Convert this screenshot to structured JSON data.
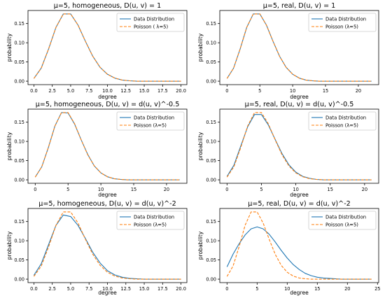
{
  "colors": {
    "data_distribution": "#1f77b4",
    "poisson": "#ff7f0e"
  },
  "chart_data": [
    {
      "type": "line",
      "title": "μ=5, homogeneous, D(u, v) = 1",
      "xlabel": "degree",
      "ylabel": "probability",
      "xlim": [
        -0.8,
        20.8
      ],
      "ylim": [
        -0.009,
        0.184
      ],
      "xticks": [
        0,
        2.5,
        5,
        7.5,
        10,
        12.5,
        15,
        17.5,
        20
      ],
      "xtick_labels": [
        "0.0",
        "2.5",
        "5.0",
        "7.5",
        "10.0",
        "12.5",
        "15.0",
        "17.5",
        "20.0"
      ],
      "yticks": [
        0,
        0.05,
        0.1,
        0.15
      ],
      "ytick_labels": [
        "0.00",
        "0.05",
        "0.10",
        "0.15"
      ],
      "grid": false,
      "legend_position": "top-right",
      "series": [
        {
          "name": "Data Distribution",
          "style": "solid",
          "x": [
            0,
            1,
            2,
            3,
            4,
            5,
            6,
            7,
            8,
            9,
            10,
            11,
            12,
            13,
            14,
            15,
            16,
            17,
            18,
            19,
            20
          ],
          "y": [
            0.007,
            0.034,
            0.084,
            0.14,
            0.175,
            0.175,
            0.146,
            0.104,
            0.065,
            0.036,
            0.018,
            0.008,
            0.003,
            0.001,
            0.0,
            0.0,
            0.0,
            0.0,
            0.0,
            0.0,
            0.0
          ]
        },
        {
          "name": "Poisson ( λ=5)",
          "style": "dashed",
          "x": [
            0,
            1,
            2,
            3,
            4,
            5,
            6,
            7,
            8,
            9,
            10,
            11,
            12,
            13,
            14,
            15,
            16,
            17,
            18,
            19,
            20
          ],
          "y": [
            0.007,
            0.034,
            0.084,
            0.14,
            0.175,
            0.175,
            0.146,
            0.104,
            0.065,
            0.036,
            0.018,
            0.008,
            0.003,
            0.001,
            0.0,
            0.0,
            0.0,
            0.0,
            0.0,
            0.0,
            0.0
          ]
        }
      ]
    },
    {
      "type": "line",
      "title": "μ=5, real, D(u, v) = 1",
      "xlabel": "degree",
      "ylabel": "probability",
      "xlim": [
        -1.1,
        23.1
      ],
      "ylim": [
        -0.009,
        0.184
      ],
      "xticks": [
        0,
        5,
        10,
        15,
        20
      ],
      "xtick_labels": [
        "0",
        "5",
        "10",
        "15",
        "20"
      ],
      "yticks": [
        0,
        0.05,
        0.1,
        0.15
      ],
      "ytick_labels": [
        "0.00",
        "0.05",
        "0.10",
        "0.15"
      ],
      "grid": false,
      "legend_position": "top-right",
      "series": [
        {
          "name": "Data Distribution",
          "style": "solid",
          "x": [
            0,
            1,
            2,
            3,
            4,
            5,
            6,
            7,
            8,
            9,
            10,
            11,
            12,
            13,
            14,
            15,
            16,
            17,
            18,
            19,
            20,
            21,
            22
          ],
          "y": [
            0.007,
            0.034,
            0.084,
            0.14,
            0.175,
            0.175,
            0.146,
            0.104,
            0.065,
            0.036,
            0.018,
            0.008,
            0.003,
            0.001,
            0.0,
            0.0,
            0.0,
            0.0,
            0.0,
            0.0,
            0.0,
            0.0,
            0.0
          ]
        },
        {
          "name": "Poisson (λ=5)",
          "style": "dashed",
          "x": [
            0,
            1,
            2,
            3,
            4,
            5,
            6,
            7,
            8,
            9,
            10,
            11,
            12,
            13,
            14,
            15,
            16,
            17,
            18,
            19,
            20,
            21,
            22
          ],
          "y": [
            0.007,
            0.034,
            0.084,
            0.14,
            0.175,
            0.175,
            0.146,
            0.104,
            0.065,
            0.036,
            0.018,
            0.008,
            0.003,
            0.001,
            0.0,
            0.0,
            0.0,
            0.0,
            0.0,
            0.0,
            0.0,
            0.0,
            0.0
          ]
        }
      ]
    },
    {
      "type": "line",
      "title": "μ=5, homogeneous, D(u, v) = d(u, v)^-0.5",
      "xlabel": "degree",
      "ylabel": "probability",
      "xlim": [
        -1.1,
        23.1
      ],
      "ylim": [
        -0.009,
        0.184
      ],
      "xticks": [
        0,
        5,
        10,
        15,
        20
      ],
      "xtick_labels": [
        "0",
        "5",
        "10",
        "15",
        "20"
      ],
      "yticks": [
        0,
        0.05,
        0.1,
        0.15
      ],
      "ytick_labels": [
        "0.00",
        "0.05",
        "0.10",
        "0.15"
      ],
      "grid": false,
      "legend_position": "top-right",
      "series": [
        {
          "name": "Data Distribution",
          "style": "solid",
          "x": [
            0,
            1,
            2,
            3,
            4,
            5,
            6,
            7,
            8,
            9,
            10,
            11,
            12,
            13,
            14,
            15,
            16,
            17,
            18,
            19,
            20,
            21,
            22
          ],
          "y": [
            0.007,
            0.034,
            0.084,
            0.14,
            0.175,
            0.174,
            0.145,
            0.104,
            0.066,
            0.036,
            0.018,
            0.008,
            0.003,
            0.001,
            0.0,
            0.0,
            0.0,
            0.0,
            0.0,
            0.0,
            0.0,
            0.0,
            0.0
          ]
        },
        {
          "name": "Poisson (λ=5)",
          "style": "dashed",
          "x": [
            0,
            1,
            2,
            3,
            4,
            5,
            6,
            7,
            8,
            9,
            10,
            11,
            12,
            13,
            14,
            15,
            16,
            17,
            18,
            19,
            20,
            21,
            22
          ],
          "y": [
            0.007,
            0.034,
            0.084,
            0.14,
            0.175,
            0.175,
            0.146,
            0.104,
            0.065,
            0.036,
            0.018,
            0.008,
            0.003,
            0.001,
            0.0,
            0.0,
            0.0,
            0.0,
            0.0,
            0.0,
            0.0,
            0.0,
            0.0
          ]
        }
      ]
    },
    {
      "type": "line",
      "title": "μ=5, real, D(u, v) = d(u, v)^-0.5",
      "xlabel": "degree",
      "ylabel": "probability",
      "xlim": [
        -1.05,
        22.05
      ],
      "ylim": [
        -0.009,
        0.184
      ],
      "xticks": [
        0,
        5,
        10,
        15,
        20
      ],
      "xtick_labels": [
        "0",
        "5",
        "10",
        "15",
        "20"
      ],
      "yticks": [
        0,
        0.05,
        0.1,
        0.15
      ],
      "ytick_labels": [
        "0.00",
        "0.05",
        "0.10",
        "0.15"
      ],
      "grid": false,
      "legend_position": "top-right",
      "series": [
        {
          "name": "Data Distribution",
          "style": "solid",
          "x": [
            0,
            1,
            2,
            3,
            4,
            5,
            6,
            7,
            8,
            9,
            10,
            11,
            12,
            13,
            14,
            15,
            16,
            17,
            18,
            19,
            20,
            21
          ],
          "y": [
            0.009,
            0.038,
            0.088,
            0.138,
            0.17,
            0.17,
            0.143,
            0.105,
            0.068,
            0.039,
            0.02,
            0.009,
            0.004,
            0.001,
            0.0,
            0.0,
            0.0,
            0.0,
            0.0,
            0.0,
            0.0,
            0.0
          ]
        },
        {
          "name": "Poisson (λ=5)",
          "style": "dashed",
          "x": [
            0,
            1,
            2,
            3,
            4,
            5,
            6,
            7,
            8,
            9,
            10,
            11,
            12,
            13,
            14,
            15,
            16,
            17,
            18,
            19,
            20,
            21
          ],
          "y": [
            0.007,
            0.034,
            0.084,
            0.14,
            0.175,
            0.175,
            0.146,
            0.104,
            0.065,
            0.036,
            0.018,
            0.008,
            0.003,
            0.001,
            0.0,
            0.0,
            0.0,
            0.0,
            0.0,
            0.0,
            0.0,
            0.0
          ]
        }
      ]
    },
    {
      "type": "line",
      "title": "μ=5, homogeneous, D(u, v) = d(u, v)^-2",
      "xlabel": "degree",
      "ylabel": "probability",
      "xlim": [
        -0.8,
        20.8
      ],
      "ylim": [
        -0.009,
        0.184
      ],
      "xticks": [
        0,
        2.5,
        5,
        7.5,
        10,
        12.5,
        15,
        17.5,
        20
      ],
      "xtick_labels": [
        "0.0",
        "2.5",
        "5.0",
        "7.5",
        "10.0",
        "12.5",
        "15.0",
        "17.5",
        "20.0"
      ],
      "yticks": [
        0,
        0.05,
        0.1,
        0.15
      ],
      "ytick_labels": [
        "0.00",
        "0.05",
        "0.10",
        "0.15"
      ],
      "grid": false,
      "legend_position": "top-right",
      "series": [
        {
          "name": "Data Distribution",
          "style": "solid",
          "x": [
            0,
            1,
            2,
            3,
            4,
            5,
            6,
            7,
            8,
            9,
            10,
            11,
            12,
            13,
            14,
            15,
            16,
            17,
            18,
            19,
            20
          ],
          "y": [
            0.01,
            0.04,
            0.09,
            0.14,
            0.167,
            0.163,
            0.14,
            0.106,
            0.07,
            0.042,
            0.022,
            0.011,
            0.005,
            0.002,
            0.001,
            0.0,
            0.0,
            0.0,
            0.0,
            0.0,
            0.0
          ]
        },
        {
          "name": "Poisson (λ=5)",
          "style": "dashed",
          "x": [
            0,
            1,
            2,
            3,
            4,
            5,
            6,
            7,
            8,
            9,
            10,
            11,
            12,
            13,
            14,
            15,
            16,
            17,
            18,
            19,
            20
          ],
          "y": [
            0.007,
            0.034,
            0.084,
            0.14,
            0.175,
            0.175,
            0.146,
            0.104,
            0.065,
            0.036,
            0.018,
            0.008,
            0.003,
            0.001,
            0.0,
            0.0,
            0.0,
            0.0,
            0.0,
            0.0,
            0.0
          ]
        }
      ]
    },
    {
      "type": "line",
      "title": "μ=5, real, D(u, v) = d(u, v)^-2",
      "xlabel": "degree",
      "ylabel": "probability",
      "xlim": [
        -1.2,
        25.2
      ],
      "ylim": [
        -0.009,
        0.184
      ],
      "xticks": [
        0,
        5,
        10,
        15,
        20,
        25
      ],
      "xtick_labels": [
        "0",
        "5",
        "10",
        "15",
        "20",
        "25"
      ],
      "yticks": [
        0,
        0.05,
        0.1,
        0.15
      ],
      "ytick_labels": [
        "0.00",
        "0.05",
        "0.10",
        "0.15"
      ],
      "grid": false,
      "legend_position": "top-right",
      "series": [
        {
          "name": "Data Distribution",
          "style": "solid",
          "x": [
            0,
            1,
            2,
            3,
            4,
            5,
            6,
            7,
            8,
            9,
            10,
            11,
            12,
            13,
            14,
            15,
            16,
            17,
            18,
            19,
            20,
            21,
            22,
            23,
            24
          ],
          "y": [
            0.032,
            0.065,
            0.092,
            0.115,
            0.131,
            0.136,
            0.131,
            0.117,
            0.097,
            0.075,
            0.055,
            0.038,
            0.025,
            0.015,
            0.009,
            0.005,
            0.003,
            0.002,
            0.001,
            0.0,
            0.0,
            0.0,
            0.0,
            0.0,
            0.0
          ]
        },
        {
          "name": "Poisson (λ=5)",
          "style": "dashed",
          "x": [
            0,
            1,
            2,
            3,
            4,
            5,
            6,
            7,
            8,
            9,
            10,
            11,
            12,
            13,
            14,
            15,
            16,
            17,
            18,
            19,
            20,
            21,
            22,
            23,
            24
          ],
          "y": [
            0.007,
            0.034,
            0.084,
            0.14,
            0.175,
            0.175,
            0.146,
            0.104,
            0.065,
            0.036,
            0.018,
            0.008,
            0.003,
            0.001,
            0.0,
            0.0,
            0.0,
            0.0,
            0.0,
            0.0,
            0.0,
            0.0,
            0.0,
            0.0,
            0.0
          ]
        }
      ]
    }
  ]
}
